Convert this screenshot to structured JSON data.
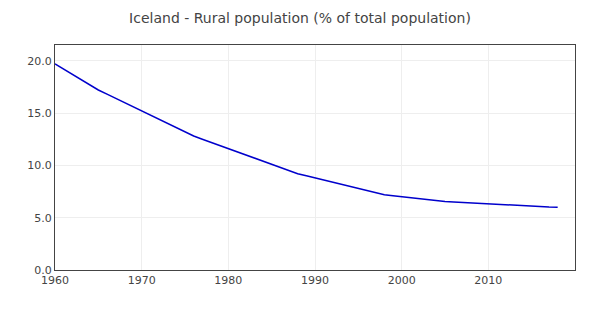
{
  "chart_data": {
    "type": "line",
    "title": "Iceland - Rural population (% of total population)",
    "x": [
      1960,
      1961,
      1962,
      1963,
      1964,
      1965,
      1966,
      1967,
      1968,
      1969,
      1970,
      1971,
      1972,
      1973,
      1974,
      1975,
      1976,
      1977,
      1978,
      1979,
      1980,
      1981,
      1982,
      1983,
      1984,
      1985,
      1986,
      1987,
      1988,
      1989,
      1990,
      1991,
      1992,
      1993,
      1994,
      1995,
      1996,
      1997,
      1998,
      1999,
      2000,
      2001,
      2002,
      2003,
      2004,
      2005,
      2006,
      2007,
      2008,
      2009,
      2010,
      2011,
      2012,
      2013,
      2014,
      2015,
      2016,
      2017,
      2018
    ],
    "values": [
      19.7,
      19.2,
      18.7,
      18.2,
      17.7,
      17.2,
      16.8,
      16.4,
      16.0,
      15.6,
      15.2,
      14.8,
      14.4,
      14.0,
      13.6,
      13.2,
      12.8,
      12.5,
      12.2,
      11.9,
      11.6,
      11.3,
      11.0,
      10.7,
      10.4,
      10.1,
      9.8,
      9.5,
      9.2,
      9.0,
      8.8,
      8.6,
      8.4,
      8.2,
      8.0,
      7.8,
      7.6,
      7.4,
      7.2,
      7.1,
      7.0,
      6.9,
      6.8,
      6.7,
      6.6,
      6.55,
      6.5,
      6.45,
      6.4,
      6.35,
      6.3,
      6.25,
      6.2,
      6.15,
      6.1,
      6.08,
      6.05,
      6.02,
      6.0
    ],
    "color": "#0000CC",
    "xlim": [
      1960,
      2020
    ],
    "ylim": [
      0.0,
      21.5
    ],
    "xticks": [
      1960,
      1970,
      1980,
      1990,
      2000,
      2010
    ],
    "yticks": [
      {
        "value": 0.0,
        "label": "0.0"
      },
      {
        "value": 5.0,
        "label": "5.0"
      },
      {
        "value": 10.0,
        "label": "10.0"
      },
      {
        "value": 15.0,
        "label": "15.0"
      },
      {
        "value": 20.0,
        "label": "20.0"
      }
    ],
    "grid": true
  }
}
